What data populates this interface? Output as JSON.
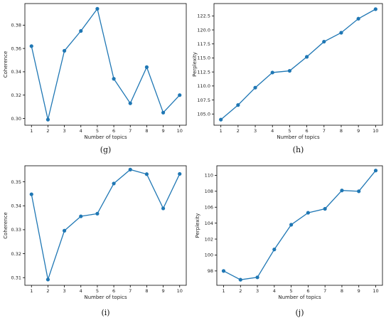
{
  "colors": {
    "series": "#1f77b4",
    "axis": "#000000",
    "text": "#222222"
  },
  "chart_data": [
    {
      "type": "line",
      "caption": "(g)",
      "xlabel": "Number of topics",
      "ylabel": "Coherence",
      "x": [
        1,
        2,
        3,
        4,
        5,
        6,
        7,
        8,
        9,
        10
      ],
      "series": [
        {
          "values": [
            0.362,
            0.299,
            0.358,
            0.375,
            0.394,
            0.334,
            0.313,
            0.344,
            0.305,
            0.32
          ]
        }
      ],
      "xlim": [
        0.6,
        10.4
      ],
      "ylim": [
        0.2942,
        0.3985
      ],
      "xticks": [
        1,
        2,
        3,
        4,
        5,
        6,
        7,
        8,
        9,
        10
      ],
      "yticks": [
        0.3,
        0.32,
        0.34,
        0.36,
        0.38
      ],
      "ytick_labels": [
        "0.30",
        "0.32",
        "0.34",
        "0.36",
        "0.38"
      ]
    },
    {
      "type": "line",
      "caption": "(h)",
      "xlabel": "Number of topics",
      "ylabel": "Perplexity",
      "x": [
        1,
        2,
        3,
        4,
        5,
        6,
        7,
        8,
        9,
        10
      ],
      "series": [
        {
          "values": [
            104.0,
            106.6,
            109.7,
            112.4,
            112.7,
            115.2,
            117.9,
            119.5,
            122.0,
            123.7
          ]
        }
      ],
      "xlim": [
        0.6,
        10.4
      ],
      "ylim": [
        103.0,
        124.7
      ],
      "xticks": [
        1,
        2,
        3,
        4,
        5,
        6,
        7,
        8,
        9,
        10
      ],
      "yticks": [
        105.0,
        107.5,
        110.0,
        112.5,
        115.0,
        117.5,
        120.0,
        122.5
      ],
      "ytick_labels": [
        "105.0",
        "107.5",
        "110.0",
        "112.5",
        "115.0",
        "117.5",
        "120.0",
        "122.5"
      ]
    },
    {
      "type": "line",
      "caption": "(i)",
      "xlabel": "Number of topics",
      "ylabel": "Coherence",
      "x": [
        1,
        2,
        3,
        4,
        5,
        6,
        7,
        8,
        9,
        10
      ],
      "series": [
        {
          "values": [
            0.3448,
            0.3092,
            0.3296,
            0.3356,
            0.3367,
            0.3493,
            0.3551,
            0.3532,
            0.3389,
            0.3533
          ]
        }
      ],
      "xlim": [
        0.6,
        10.4
      ],
      "ylim": [
        0.3068,
        0.3567
      ],
      "xticks": [
        1,
        2,
        3,
        4,
        5,
        6,
        7,
        8,
        9,
        10
      ],
      "yticks": [
        0.31,
        0.32,
        0.33,
        0.34,
        0.35
      ],
      "ytick_labels": [
        "0.31",
        "0.32",
        "0.33",
        "0.34",
        "0.35"
      ]
    },
    {
      "type": "line",
      "caption": "(j)",
      "xlabel": "Number of topics",
      "ylabel": "Perplexity",
      "x": [
        1,
        2,
        3,
        4,
        5,
        6,
        7,
        8,
        9,
        10
      ],
      "series": [
        {
          "values": [
            98.0,
            96.9,
            97.2,
            100.7,
            103.8,
            105.3,
            105.8,
            108.1,
            108.0,
            110.6
          ]
        }
      ],
      "xlim": [
        0.6,
        10.4
      ],
      "ylim": [
        96.2,
        111.2
      ],
      "xticks": [
        1,
        2,
        3,
        4,
        5,
        6,
        7,
        8,
        9,
        10
      ],
      "yticks": [
        98,
        100,
        102,
        104,
        106,
        108,
        110
      ],
      "ytick_labels": [
        "98",
        "100",
        "102",
        "104",
        "106",
        "108",
        "110"
      ]
    }
  ]
}
